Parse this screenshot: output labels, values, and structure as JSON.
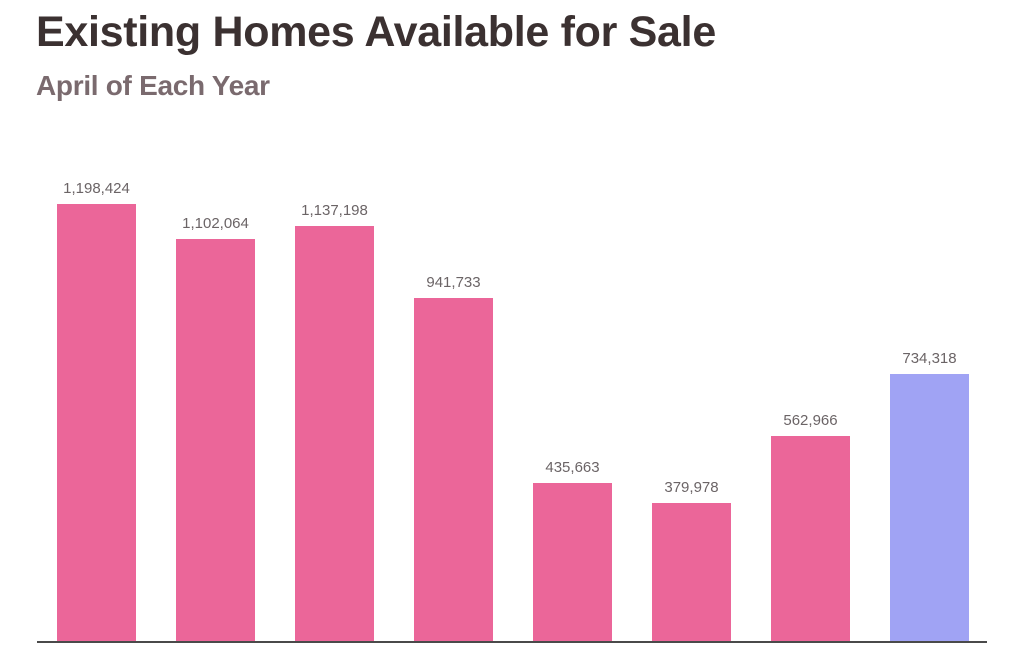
{
  "header": {
    "title": "Existing Homes Available for Sale",
    "subtitle": "April of Each Year"
  },
  "colors": {
    "bar_default": "#eb6699",
    "bar_highlight": "#a0a3f4",
    "title": "#3b3131",
    "subtitle": "#7a6a6e",
    "label": "#6b6466",
    "axis": "#4a4a4a"
  },
  "labels": [
    "1,198,424",
    "1,102,064",
    "1,137,198",
    "941,733",
    "435,663",
    "379,978",
    "562,966",
    "734,318"
  ],
  "chart_data": {
    "type": "bar",
    "title": "Existing Homes Available for Sale",
    "subtitle": "April of Each Year",
    "categories": [
      "",
      "",
      "",
      "",
      "",
      "",
      "",
      ""
    ],
    "values": [
      1198424,
      1102064,
      1137198,
      941733,
      435663,
      379978,
      562966,
      734318
    ],
    "highlight_index": 7,
    "xlabel": "",
    "ylabel": "",
    "ylim": [
      0,
      1198424
    ],
    "grid": false,
    "legend": null,
    "data_labels": true
  }
}
